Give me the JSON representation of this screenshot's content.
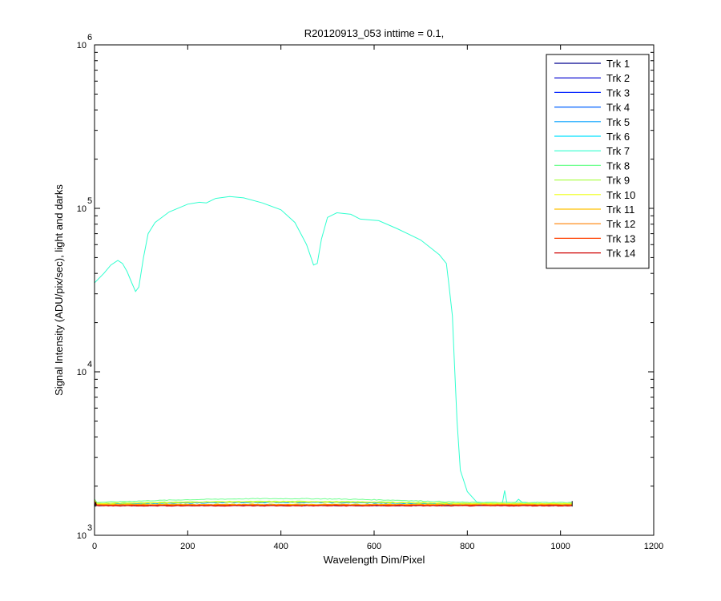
{
  "chart_data": {
    "type": "line",
    "title": "R20120913_053 inttime = 0.1,",
    "xlabel": "Wavelength Dim/Pixel",
    "ylabel": "Signal Intensity (ADU/pix/sec), light and darks",
    "xlim": [
      0,
      1200
    ],
    "ylim": [
      1000,
      1000000
    ],
    "yscale": "log",
    "x_ticks": [
      "0",
      "200",
      "400",
      "600",
      "800",
      "1000",
      "1200"
    ],
    "y_ticks": [
      {
        "base": "10",
        "exp": "3"
      },
      {
        "base": "10",
        "exp": "4"
      },
      {
        "base": "10",
        "exp": "5"
      },
      {
        "base": "10",
        "exp": "6"
      }
    ],
    "grid": false,
    "legend_position": "top-right",
    "series": [
      {
        "name": "Trk 1",
        "color": "#00008F",
        "level": 1520
      },
      {
        "name": "Trk 2",
        "color": "#0000CF",
        "level": 1525
      },
      {
        "name": "Trk 3",
        "color": "#0020FF",
        "level": 1530
      },
      {
        "name": "Trk 4",
        "color": "#0060FF",
        "level": 1535
      },
      {
        "name": "Trk 5",
        "color": "#00A0FF",
        "level": 1545
      },
      {
        "name": "Trk 6",
        "color": "#00E0FF",
        "level": 1560
      },
      {
        "name": "Trk 7",
        "color": "#30FFCF",
        "points": [
          [
            0,
            35000
          ],
          [
            20,
            40000
          ],
          [
            35,
            45000
          ],
          [
            50,
            48000
          ],
          [
            60,
            46000
          ],
          [
            70,
            41000
          ],
          [
            80,
            35000
          ],
          [
            88,
            31000
          ],
          [
            95,
            33000
          ],
          [
            105,
            50000
          ],
          [
            115,
            70000
          ],
          [
            130,
            82000
          ],
          [
            160,
            95000
          ],
          [
            200,
            106000
          ],
          [
            225,
            109000
          ],
          [
            240,
            108000
          ],
          [
            260,
            115000
          ],
          [
            290,
            118000
          ],
          [
            320,
            116000
          ],
          [
            360,
            108000
          ],
          [
            400,
            98000
          ],
          [
            430,
            82000
          ],
          [
            455,
            60000
          ],
          [
            470,
            45000
          ],
          [
            478,
            46000
          ],
          [
            487,
            65000
          ],
          [
            500,
            88000
          ],
          [
            520,
            94000
          ],
          [
            550,
            92000
          ],
          [
            570,
            86000
          ],
          [
            610,
            84000
          ],
          [
            650,
            75000
          ],
          [
            700,
            64000
          ],
          [
            740,
            52000
          ],
          [
            755,
            46000
          ],
          [
            760,
            35000
          ],
          [
            768,
            22000
          ],
          [
            772,
            12000
          ],
          [
            778,
            5000
          ],
          [
            785,
            2500
          ],
          [
            800,
            1850
          ],
          [
            820,
            1600
          ],
          [
            860,
            1560
          ],
          [
            875,
            1560
          ],
          [
            880,
            1880
          ],
          [
            885,
            1570
          ],
          [
            900,
            1560
          ],
          [
            910,
            1660
          ],
          [
            920,
            1570
          ],
          [
            945,
            1590
          ],
          [
            950,
            1560
          ],
          [
            1000,
            1560
          ],
          [
            1025,
            1560
          ]
        ]
      },
      {
        "name": "Trk 8",
        "color": "#6FFF8F",
        "level": 1590
      },
      {
        "name": "Trk 9",
        "color": "#AFFF50",
        "level": 1570
      },
      {
        "name": "Trk 10",
        "color": "#EFFF10",
        "level": 1560
      },
      {
        "name": "Trk 11",
        "color": "#FFC000",
        "level": 1545
      },
      {
        "name": "Trk 12",
        "color": "#FF8000",
        "level": 1535
      },
      {
        "name": "Trk 13",
        "color": "#FF4000",
        "level": 1525
      },
      {
        "name": "Trk 14",
        "color": "#CF0000",
        "level": 1515
      }
    ]
  }
}
